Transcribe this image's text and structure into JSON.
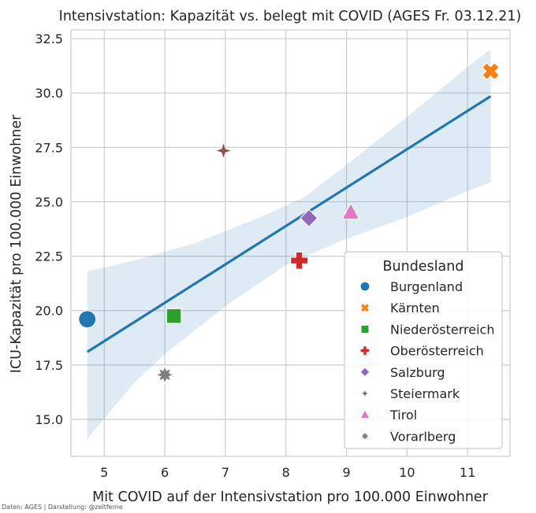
{
  "chart_data": {
    "type": "scatter",
    "title": "Intensivstation: Kapazität vs. belegt mit COVID (AGES Fr. 03.12.21)",
    "xlabel": "Mit COVID auf der Intensivstation pro 100.000 Einwohner",
    "ylabel": "ICU-Kapazität pro 100.000 Einwohner",
    "xlim": [
      4.45,
      11.7
    ],
    "ylim": [
      13.3,
      32.9
    ],
    "xticks": [
      5,
      6,
      7,
      8,
      9,
      10,
      11
    ],
    "yticks": [
      15.0,
      17.5,
      20.0,
      22.5,
      25.0,
      27.5,
      30.0,
      32.5
    ],
    "ytick_labels": [
      "15.0",
      "17.5",
      "20.0",
      "22.5",
      "25.0",
      "27.5",
      "30.0",
      "32.5"
    ],
    "grid": true,
    "legend_title": "Bundesland",
    "legend_position": "lower-right",
    "points": [
      {
        "name": "Burgenland",
        "x": 4.72,
        "y": 19.6,
        "color": "#1f77b4",
        "marker": "circle"
      },
      {
        "name": "Kärnten",
        "x": 11.38,
        "y": 31.0,
        "color": "#ff7f0e",
        "marker": "x"
      },
      {
        "name": "Niederösterreich",
        "x": 6.15,
        "y": 19.75,
        "color": "#2ca02c",
        "marker": "square"
      },
      {
        "name": "Oberösterreich",
        "x": 8.22,
        "y": 22.3,
        "color": "#d62728",
        "marker": "plus"
      },
      {
        "name": "Salzburg",
        "x": 8.38,
        "y": 24.25,
        "color": "#9467bd",
        "marker": "diamond"
      },
      {
        "name": "Steiermark",
        "x": 6.97,
        "y": 27.35,
        "color": "#8c564b",
        "marker": "star4"
      },
      {
        "name": "Tirol",
        "x": 9.07,
        "y": 24.5,
        "color": "#e377c2",
        "marker": "triangle"
      },
      {
        "name": "Vorarlberg",
        "x": 6.0,
        "y": 17.05,
        "color": "#7f7f7f",
        "marker": "star8"
      }
    ],
    "regression": {
      "x": [
        4.72,
        11.38
      ],
      "y": [
        18.1,
        29.85
      ],
      "color": "#1f77b4",
      "ci_color": "#1f77b4",
      "ci_upper": [
        [
          4.72,
          21.8
        ],
        [
          5.5,
          22.3
        ],
        [
          6.5,
          23.1
        ],
        [
          7.5,
          24.2
        ],
        [
          8.3,
          25.2
        ],
        [
          9.0,
          26.7
        ],
        [
          10.0,
          28.9
        ],
        [
          11.0,
          31.2
        ],
        [
          11.38,
          32.0
        ]
      ],
      "ci_lower": [
        [
          4.72,
          14.1
        ],
        [
          5.5,
          16.7
        ],
        [
          6.0,
          18.0
        ],
        [
          7.0,
          20.2
        ],
        [
          8.0,
          22.1
        ],
        [
          9.0,
          23.3
        ],
        [
          10.0,
          24.3
        ],
        [
          11.0,
          25.5
        ],
        [
          11.38,
          25.9
        ]
      ]
    }
  },
  "credit": "Daten: AGES | Darstellung: @zeitferne"
}
